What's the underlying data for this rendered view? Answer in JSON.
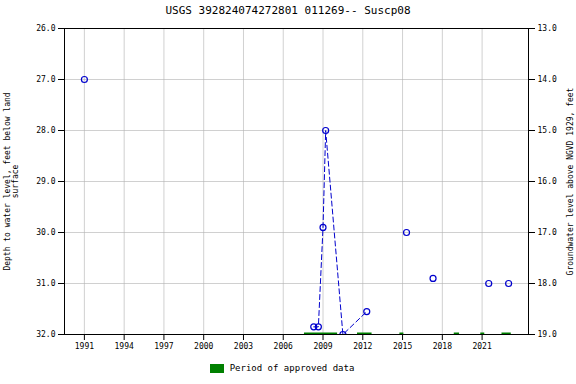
{
  "chart_data": {
    "type": "scatter",
    "title": "USGS 392824074272801 011269-- Suscp08",
    "ylabel": "Depth to water level, feet below land\nsurface",
    "y2label": "Groundwater level above NGVD 1929, feet",
    "xlim": [
      1989.5,
      2024.5
    ],
    "xticks": [
      1991,
      1994,
      1997,
      2000,
      2003,
      2006,
      2009,
      2012,
      2015,
      2018,
      2021
    ],
    "ylim": [
      32.0,
      26.0
    ],
    "yticks": [
      {
        "value": 26.0,
        "label": "26.0"
      },
      {
        "value": 27.0,
        "label": "27.0"
      },
      {
        "value": 28.0,
        "label": "28.0"
      },
      {
        "value": 29.0,
        "label": "29.0"
      },
      {
        "value": 30.0,
        "label": "30.0"
      },
      {
        "value": 31.0,
        "label": "31.0"
      },
      {
        "value": 32.0,
        "label": "32.0"
      }
    ],
    "y2lim": [
      19.0,
      13.0
    ],
    "y2ticks": [
      {
        "value": 19.0,
        "label": "19.0"
      },
      {
        "value": 18.0,
        "label": "18.0"
      },
      {
        "value": 17.0,
        "label": "17.0"
      },
      {
        "value": 16.0,
        "label": "16.0"
      },
      {
        "value": 15.0,
        "label": "15.0"
      },
      {
        "value": 14.0,
        "label": "14.0"
      },
      {
        "value": 13.0,
        "label": "13.0"
      }
    ],
    "grid": true,
    "legend": "bottom",
    "series": [
      {
        "type": "line",
        "line_style": "dashed",
        "color": "#0000cd",
        "x": [
          2008.3,
          2008.65,
          2009.0,
          2009.2,
          2010.5,
          2012.3
        ],
        "values": [
          31.85,
          31.85,
          29.9,
          28.0,
          32.0,
          31.55
        ]
      },
      {
        "type": "scatter",
        "marker": "circle",
        "color": "#0000cd",
        "x": [
          1991.0,
          2008.3,
          2008.65,
          2009.0,
          2009.2,
          2010.5,
          2012.3,
          2015.3,
          2017.3,
          2021.5,
          2023.0
        ],
        "values": [
          27.0,
          31.85,
          31.85,
          29.9,
          28.0,
          32.0,
          31.55,
          30.0,
          30.9,
          31.0,
          31.0
        ]
      },
      {
        "type": "segment",
        "name": "Period of approved data",
        "color": "#008000",
        "x_start": [
          2007.6,
          2011.6,
          2014.8,
          2018.9,
          2020.9,
          2022.5
        ],
        "x_end": [
          2010.1,
          2012.7,
          2015.1,
          2019.3,
          2021.2,
          2023.2
        ],
        "values": [
          32.0,
          32.0,
          32.0,
          32.0,
          32.0,
          32.0
        ]
      }
    ]
  }
}
